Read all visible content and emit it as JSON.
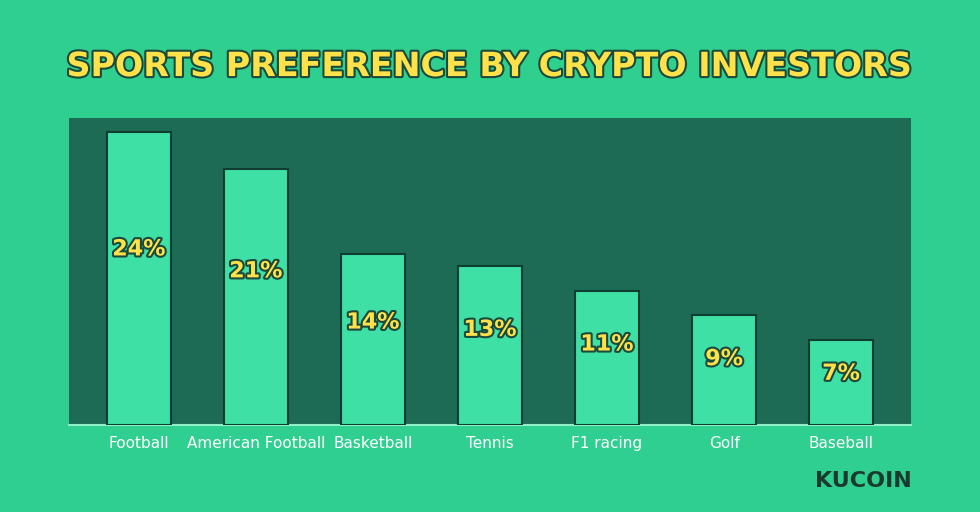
{
  "chart_data": {
    "type": "bar",
    "title": "SPORTS PREFERENCE BY CRYPTO INVESTORS",
    "categories": [
      "Football",
      "American Football",
      "Basketball",
      "Tennis",
      "F1 racing",
      "Golf",
      "Baseball"
    ],
    "values": [
      24,
      21,
      14,
      13,
      11,
      9,
      7
    ],
    "value_labels": [
      "24%",
      "21%",
      "14%",
      "13%",
      "11%",
      "9%",
      "7%"
    ],
    "color": "#3fe0a6",
    "data_labels": true,
    "tick_labels": "x",
    "grid": false,
    "annotations": [
      "KUCOIN"
    ]
  }
}
